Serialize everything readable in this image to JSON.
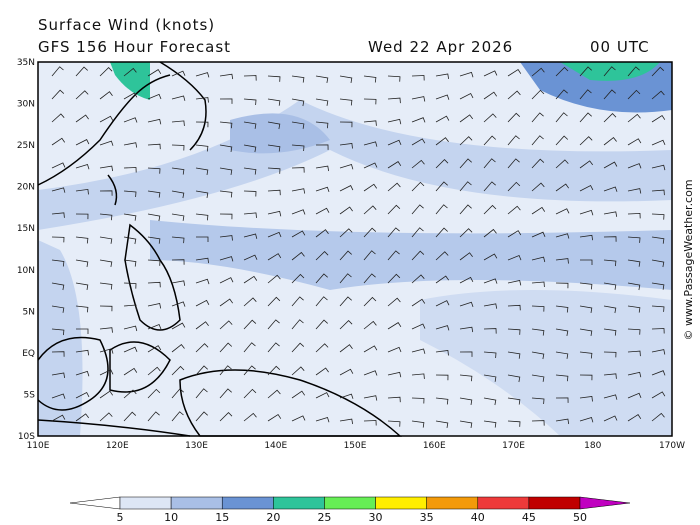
{
  "header": {
    "title": "Surface Wind (knots)",
    "subtitle": "GFS 156 Hour Forecast",
    "date": "Wed 22 Apr 2026",
    "time": "00 UTC"
  },
  "map": {
    "lat_labels": [
      "35N",
      "30N",
      "25N",
      "20N",
      "15N",
      "10N",
      "5N",
      "EQ",
      "5S",
      "10S"
    ],
    "lon_labels": [
      "110E",
      "120E",
      "130E",
      "140E",
      "150E",
      "160E",
      "170E",
      "180",
      "170W"
    ]
  },
  "legend": {
    "labels": [
      5,
      10,
      15,
      20,
      25,
      30,
      35,
      40,
      45,
      50
    ],
    "colors": [
      "#ffffff",
      "#dde6f5",
      "#a9bfe6",
      "#6a93d4",
      "#2ec49a",
      "#66ee55",
      "#ffee00",
      "#f39a0a",
      "#ee3a3a",
      "#c00000",
      "#c000c0"
    ]
  },
  "credit": "© www.PassageWeather.com"
}
